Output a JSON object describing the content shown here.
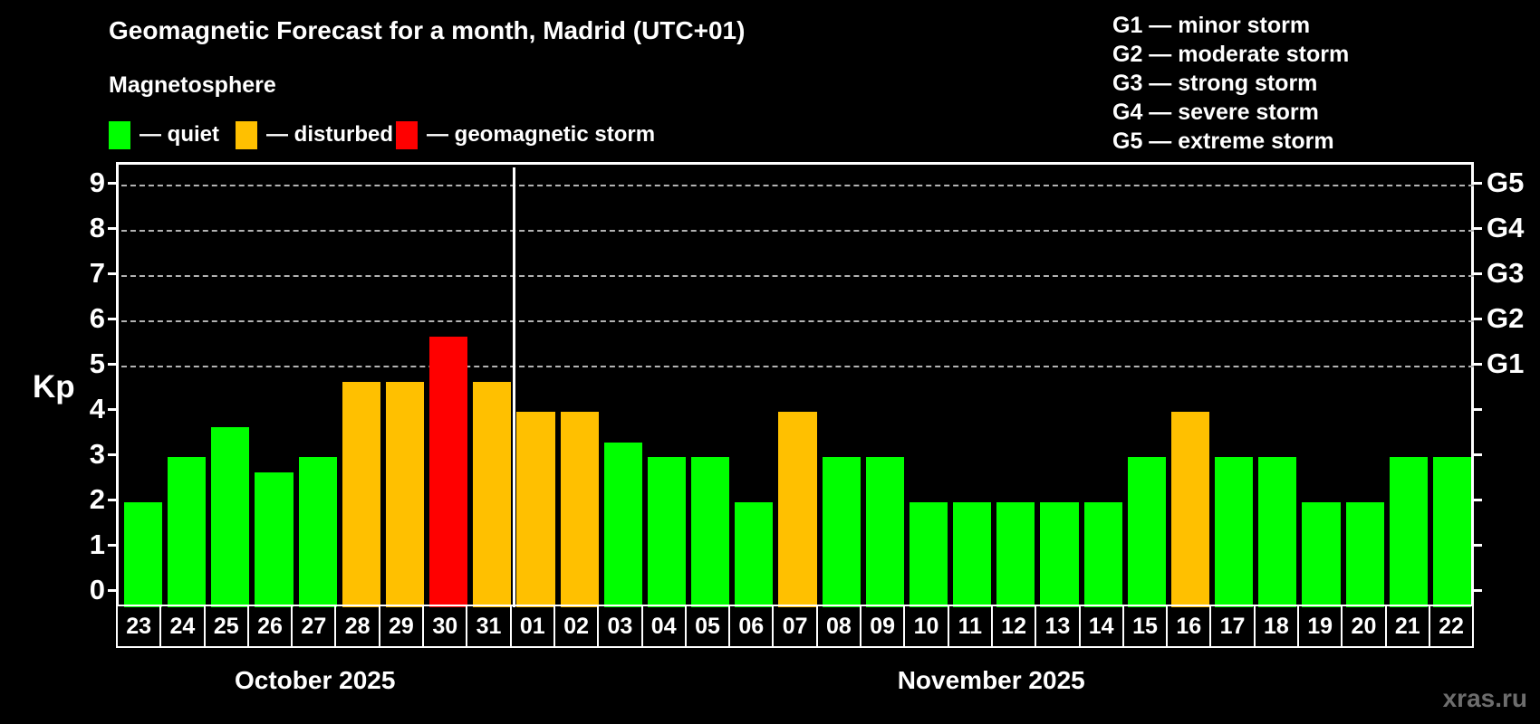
{
  "title": "Geomagnetic Forecast for a month, Madrid (UTC+01)",
  "subtitle": "Magnetosphere",
  "legend": {
    "items": [
      {
        "key": "quiet",
        "label": "— quiet",
        "color": "#00ff00"
      },
      {
        "key": "disturbed",
        "label": "— disturbed",
        "color": "#ffc000"
      },
      {
        "key": "storm",
        "label": "— geomagnetic storm",
        "color": "#ff0000"
      }
    ]
  },
  "g_legend": [
    "G1 — minor storm",
    "G2 — moderate storm",
    "G3 — strong storm",
    "G4 — severe storm",
    "G5 — extreme storm"
  ],
  "watermark": "xras.ru",
  "chart_data": {
    "type": "bar",
    "title": "Geomagnetic Forecast for a month, Madrid (UTC+01)",
    "ylabel": "Kp",
    "ylim": [
      0,
      9
    ],
    "yticks": [
      "0",
      "1",
      "2",
      "3",
      "4",
      "5",
      "6",
      "7",
      "8",
      "9"
    ],
    "gridlines_at": [
      5,
      6,
      7,
      8,
      9
    ],
    "grid": "dashed horizontal at storm levels only",
    "right_axis_labels": [
      {
        "label": "G1",
        "value": 5
      },
      {
        "label": "G2",
        "value": 6
      },
      {
        "label": "G3",
        "value": 7
      },
      {
        "label": "G4",
        "value": 8
      },
      {
        "label": "G5",
        "value": 9
      }
    ],
    "status_colors": {
      "quiet": "#00ff00",
      "disturbed": "#ffc000",
      "storm": "#ff0000"
    },
    "months": [
      {
        "label": "October 2025",
        "days": [
          {
            "day": "23",
            "kp": 2.0,
            "status": "quiet"
          },
          {
            "day": "24",
            "kp": 3.0,
            "status": "quiet"
          },
          {
            "day": "25",
            "kp": 3.67,
            "status": "quiet"
          },
          {
            "day": "26",
            "kp": 2.67,
            "status": "quiet"
          },
          {
            "day": "27",
            "kp": 3.0,
            "status": "quiet"
          },
          {
            "day": "28",
            "kp": 4.67,
            "status": "disturbed"
          },
          {
            "day": "29",
            "kp": 4.67,
            "status": "disturbed"
          },
          {
            "day": "30",
            "kp": 5.67,
            "status": "storm"
          },
          {
            "day": "31",
            "kp": 4.67,
            "status": "disturbed"
          }
        ]
      },
      {
        "label": "November 2025",
        "days": [
          {
            "day": "01",
            "kp": 4.0,
            "status": "disturbed"
          },
          {
            "day": "02",
            "kp": 4.0,
            "status": "disturbed"
          },
          {
            "day": "03",
            "kp": 3.33,
            "status": "quiet"
          },
          {
            "day": "04",
            "kp": 3.0,
            "status": "quiet"
          },
          {
            "day": "05",
            "kp": 3.0,
            "status": "quiet"
          },
          {
            "day": "06",
            "kp": 2.0,
            "status": "quiet"
          },
          {
            "day": "07",
            "kp": 4.0,
            "status": "disturbed"
          },
          {
            "day": "08",
            "kp": 3.0,
            "status": "quiet"
          },
          {
            "day": "09",
            "kp": 3.0,
            "status": "quiet"
          },
          {
            "day": "10",
            "kp": 2.0,
            "status": "quiet"
          },
          {
            "day": "11",
            "kp": 2.0,
            "status": "quiet"
          },
          {
            "day": "12",
            "kp": 2.0,
            "status": "quiet"
          },
          {
            "day": "13",
            "kp": 2.0,
            "status": "quiet"
          },
          {
            "day": "14",
            "kp": 2.0,
            "status": "quiet"
          },
          {
            "day": "15",
            "kp": 3.0,
            "status": "quiet"
          },
          {
            "day": "16",
            "kp": 4.0,
            "status": "disturbed"
          },
          {
            "day": "17",
            "kp": 3.0,
            "status": "quiet"
          },
          {
            "day": "18",
            "kp": 3.0,
            "status": "quiet"
          },
          {
            "day": "19",
            "kp": 2.0,
            "status": "quiet"
          },
          {
            "day": "20",
            "kp": 2.0,
            "status": "quiet"
          },
          {
            "day": "21",
            "kp": 3.0,
            "status": "quiet"
          },
          {
            "day": "22",
            "kp": 3.0,
            "status": "quiet"
          }
        ]
      }
    ]
  }
}
